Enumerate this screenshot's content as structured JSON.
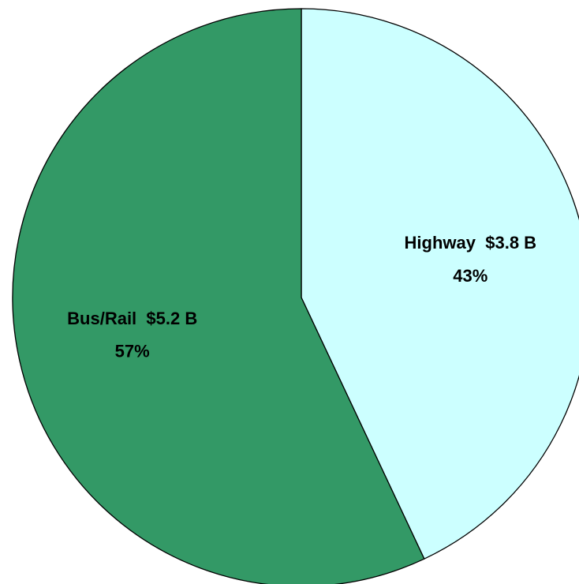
{
  "chart_data": {
    "type": "pie",
    "categories": [
      "Highway",
      "Bus/Rail"
    ],
    "values": [
      43,
      57
    ],
    "value_labels": [
      "43%",
      "57%"
    ],
    "amounts": [
      3.8,
      5.2
    ],
    "amount_labels": [
      "$3.8 B",
      "$5.2 B"
    ],
    "colors": [
      "#ccffff",
      "#339966"
    ]
  }
}
